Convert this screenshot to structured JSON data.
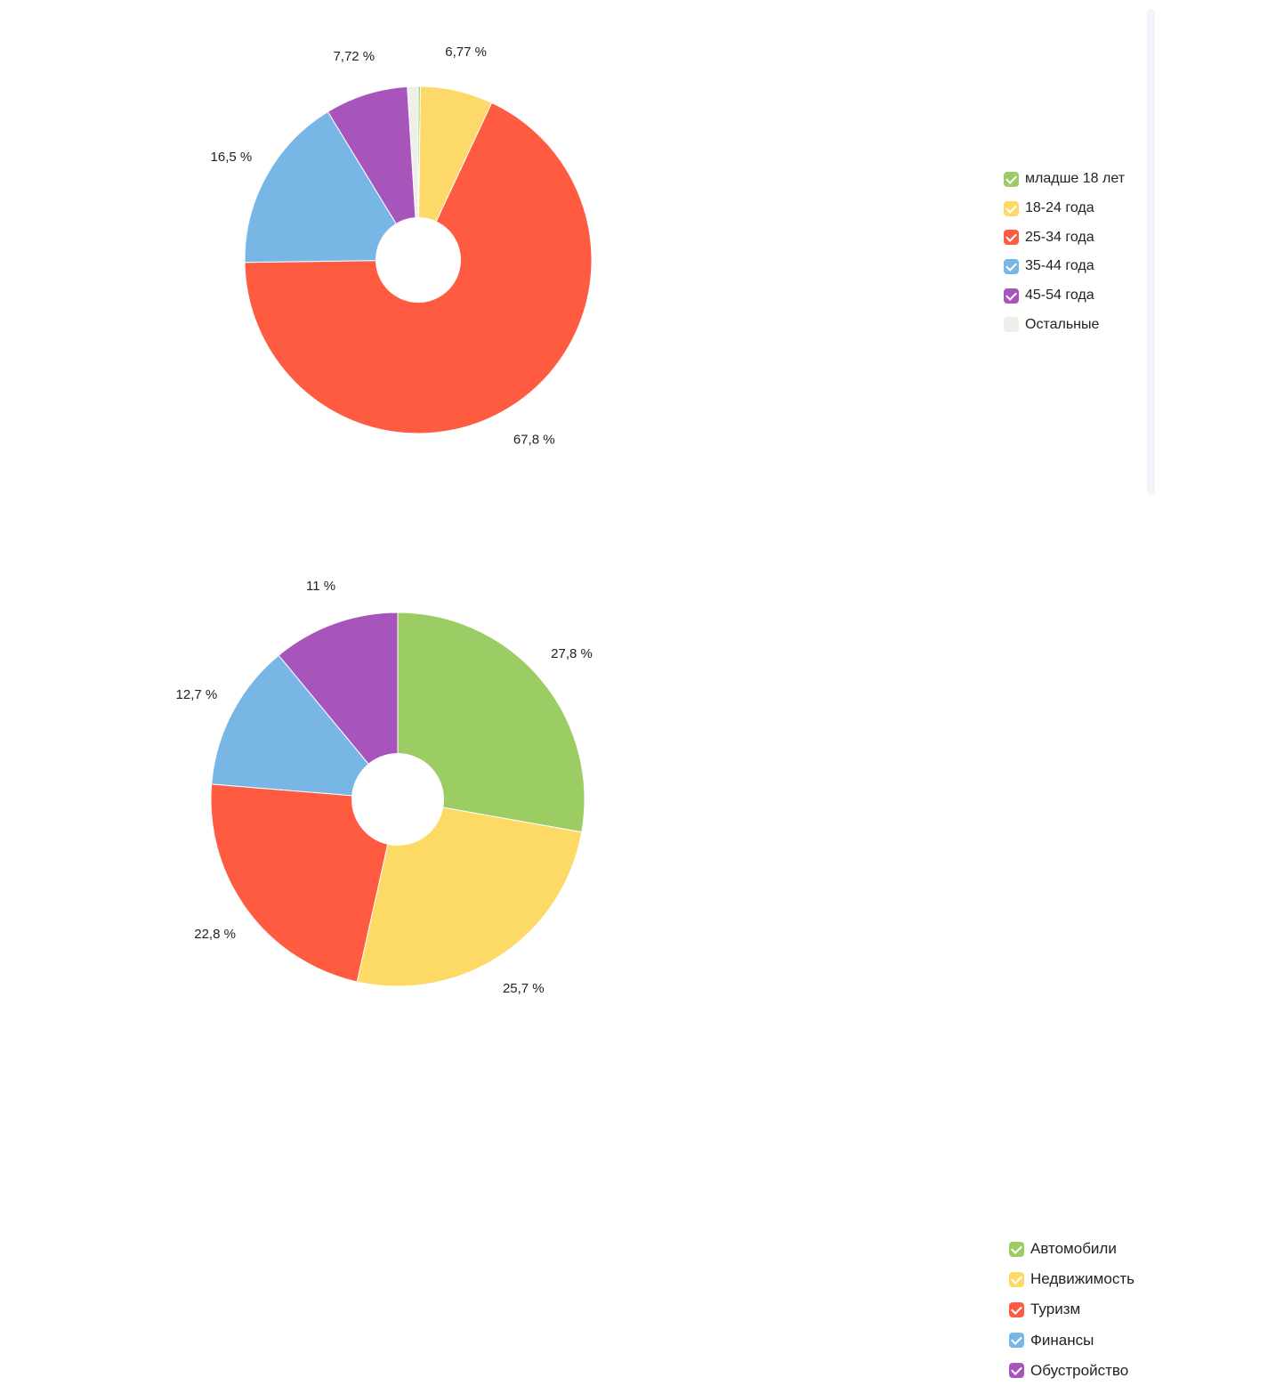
{
  "chart_data": [
    {
      "type": "pie",
      "donut": true,
      "legend_position": "right",
      "categories": [
        "младше 18 лет",
        "18-24 года",
        "25-34 года",
        "35-44 года",
        "45-54 года",
        "Остальные"
      ],
      "values": [
        0.2,
        6.77,
        67.8,
        16.5,
        7.72,
        1.0
      ],
      "labels": [
        "",
        "6,77 %",
        "67,8 %",
        "16,5 %",
        "7,72 %",
        ""
      ],
      "colors": [
        "#9ccc65",
        "#fdd96a",
        "#fe5b40",
        "#78b6e6",
        "#a855bb",
        "#efefea"
      ],
      "checked": [
        true,
        true,
        true,
        true,
        true,
        false
      ]
    },
    {
      "type": "pie",
      "donut": true,
      "legend_position": "right",
      "categories": [
        "Автомобили",
        "Недвижимость",
        "Туризм",
        "Финансы",
        "Обустройство"
      ],
      "values": [
        27.8,
        25.7,
        22.8,
        12.7,
        11
      ],
      "labels": [
        "27,8 %",
        "25,7 %",
        "22,8 %",
        "12,7 %",
        "11 %"
      ],
      "colors": [
        "#9ccd64",
        "#fdd966",
        "#fe5b40",
        "#78b6e6",
        "#a855bb"
      ],
      "checked": [
        true,
        true,
        true,
        true,
        true
      ]
    }
  ]
}
